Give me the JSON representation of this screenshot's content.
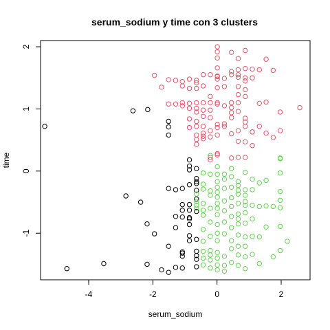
{
  "chart_data": {
    "type": "scatter",
    "title": "serum_sodium  y  time con  3  clusters",
    "xlabel": "serum_sodium",
    "ylabel": "time",
    "xlim": [
      -5.5,
      2.9
    ],
    "ylim": [
      -1.75,
      2.1
    ],
    "xticks": [
      -4,
      -2,
      0,
      2
    ],
    "yticks": [
      -1,
      0,
      1,
      2
    ],
    "grid": false,
    "legend": "none",
    "series": [
      {
        "color": "#000000",
        "points": [
          [
            -5.37,
            0.72
          ],
          [
            -4.68,
            -1.57
          ],
          [
            -3.53,
            -1.49
          ],
          [
            -2.84,
            -0.4
          ],
          [
            -2.62,
            0.97
          ],
          [
            -2.38,
            -0.5
          ],
          [
            -2.16,
            0.99
          ],
          [
            -2.18,
            -0.85
          ],
          [
            -2.18,
            -1.5
          ],
          [
            -1.95,
            -1.01
          ],
          [
            -1.73,
            -1.59
          ],
          [
            -1.51,
            -1.63
          ],
          [
            -1.51,
            0.58
          ],
          [
            -1.51,
            0.71
          ],
          [
            -1.51,
            0.8
          ],
          [
            -1.51,
            -0.28
          ],
          [
            -1.51,
            -1.21
          ],
          [
            -1.29,
            -1.55
          ],
          [
            -1.29,
            -0.91
          ],
          [
            -1.29,
            -0.73
          ],
          [
            -1.29,
            -0.3
          ],
          [
            -1.08,
            -1.56
          ],
          [
            -1.08,
            -0.54
          ],
          [
            -1.08,
            -0.63
          ],
          [
            -1.08,
            -0.74
          ],
          [
            -1.08,
            -0.28
          ],
          [
            -1.08,
            -1.32
          ],
          [
            -1.08,
            -1.37
          ],
          [
            -1.08,
            -1.3
          ],
          [
            -0.86,
            -0.54
          ],
          [
            -0.86,
            -0.63
          ],
          [
            -0.86,
            -0.75
          ],
          [
            -0.86,
            -0.77
          ],
          [
            -0.86,
            -0.86
          ],
          [
            -0.86,
            -1.04
          ],
          [
            -0.86,
            -1.12
          ],
          [
            -0.86,
            -0.22
          ],
          [
            -0.86,
            0.02
          ],
          [
            -0.86,
            0.08
          ],
          [
            -0.86,
            0.18
          ],
          [
            -0.64,
            -1.29
          ],
          [
            -0.64,
            -1.36
          ],
          [
            -0.64,
            -1.42
          ],
          [
            -0.64,
            -1.1
          ],
          [
            -0.64,
            -0.45
          ],
          [
            -0.64,
            -0.31
          ],
          [
            -0.64,
            -0.2
          ],
          [
            -0.64,
            -0.17
          ],
          [
            -0.64,
            -0.12
          ],
          [
            -0.64,
            0.04
          ],
          [
            -0.64,
            -1.54
          ],
          [
            -0.64,
            -0.65
          ]
        ]
      },
      {
        "color": "#DF536B",
        "points": [
          [
            -1.95,
            1.54
          ],
          [
            -1.73,
            1.35
          ],
          [
            -1.51,
            1.47
          ],
          [
            -1.51,
            1.08
          ],
          [
            -1.29,
            1.08
          ],
          [
            -1.29,
            1.46
          ],
          [
            -1.08,
            1.44
          ],
          [
            -1.08,
            1.37
          ],
          [
            -1.08,
            1.05
          ],
          [
            -1.08,
            1.1
          ],
          [
            -0.86,
            1.09
          ],
          [
            -0.86,
            1.01
          ],
          [
            -0.86,
            0.84
          ],
          [
            -0.86,
            0.7
          ],
          [
            -0.86,
            1.33
          ],
          [
            -0.86,
            1.48
          ],
          [
            -0.64,
            1.46
          ],
          [
            -0.64,
            1.33
          ],
          [
            -0.64,
            1.1
          ],
          [
            -0.64,
            1.01
          ],
          [
            -0.64,
            0.95
          ],
          [
            -0.64,
            0.8
          ],
          [
            -0.64,
            0.72
          ],
          [
            -0.64,
            0.58
          ],
          [
            -0.64,
            0.51
          ],
          [
            -0.64,
            0.43
          ],
          [
            -0.64,
            1.42
          ],
          [
            -0.43,
            1.37
          ],
          [
            -0.43,
            1.1
          ],
          [
            -0.43,
            0.98
          ],
          [
            -0.43,
            0.88
          ],
          [
            -0.43,
            0.72
          ],
          [
            -0.43,
            0.61
          ],
          [
            -0.43,
            0.56
          ],
          [
            -0.43,
            0.52
          ],
          [
            -0.43,
            1.55
          ],
          [
            -0.21,
            1.1
          ],
          [
            -0.21,
            0.98
          ],
          [
            -0.21,
            0.86
          ],
          [
            -0.21,
            0.65
          ],
          [
            -0.21,
            0.55
          ],
          [
            -0.21,
            0.22
          ],
          [
            -0.21,
            0.18
          ],
          [
            -0.21,
            1.55
          ],
          [
            -0.21,
            1.2
          ],
          [
            0.01,
            2.0
          ],
          [
            0.01,
            1.92
          ],
          [
            0.01,
            1.82
          ],
          [
            0.01,
            1.66
          ],
          [
            0.01,
            1.52
          ],
          [
            0.01,
            1.48
          ],
          [
            0.01,
            1.34
          ],
          [
            0.01,
            1.1
          ],
          [
            0.01,
            1.08
          ],
          [
            0.01,
            0.75
          ],
          [
            0.01,
            0.7
          ],
          [
            0.01,
            0.58
          ],
          [
            0.01,
            0.28
          ],
          [
            0.01,
            0.26
          ],
          [
            0.01,
            1.53
          ],
          [
            0.23,
            1.05
          ],
          [
            0.23,
            0.76
          ],
          [
            0.23,
            0.72
          ],
          [
            0.23,
            1.49
          ],
          [
            0.23,
            1.36
          ],
          [
            0.45,
            1.91
          ],
          [
            0.45,
            1.55
          ],
          [
            0.45,
            1.1
          ],
          [
            0.45,
            1.02
          ],
          [
            0.45,
            0.94
          ],
          [
            0.45,
            0.86
          ],
          [
            0.45,
            0.6
          ],
          [
            0.45,
            0.21
          ],
          [
            0.45,
            1.6
          ],
          [
            0.66,
            1.81
          ],
          [
            0.66,
            1.63
          ],
          [
            0.66,
            1.55
          ],
          [
            0.66,
            1.36
          ],
          [
            0.66,
            1.23
          ],
          [
            0.66,
            1.1
          ],
          [
            0.66,
            0.96
          ],
          [
            0.66,
            0.65
          ],
          [
            0.66,
            0.48
          ],
          [
            0.66,
            0.22
          ],
          [
            0.66,
            1.51
          ],
          [
            0.88,
            1.94
          ],
          [
            0.88,
            1.65
          ],
          [
            0.88,
            1.5
          ],
          [
            0.88,
            1.45
          ],
          [
            0.88,
            1.31
          ],
          [
            0.88,
            1.2
          ],
          [
            0.88,
            0.85
          ],
          [
            0.88,
            0.79
          ],
          [
            0.88,
            0.72
          ],
          [
            0.88,
            0.47
          ],
          [
            0.88,
            0.22
          ],
          [
            1.1,
            1.64
          ],
          [
            1.1,
            1.5
          ],
          [
            1.1,
            0.63
          ],
          [
            1.1,
            0.41
          ],
          [
            1.32,
            1.63
          ],
          [
            1.32,
            1.09
          ],
          [
            1.32,
            0.72
          ],
          [
            1.53,
            1.8
          ],
          [
            1.53,
            1.11
          ],
          [
            1.53,
            0.61
          ],
          [
            1.75,
            1.62
          ],
          [
            1.75,
            0.54
          ],
          [
            1.97,
            0.95
          ],
          [
            1.97,
            0.65
          ],
          [
            2.58,
            1.02
          ]
        ]
      },
      {
        "color": "#61D04F",
        "points": [
          [
            -0.64,
            -0.37
          ],
          [
            -0.64,
            -0.49
          ],
          [
            -0.64,
            -0.55
          ],
          [
            -0.64,
            -0.6
          ],
          [
            -0.43,
            -0.03
          ],
          [
            -0.43,
            -0.29
          ],
          [
            -0.43,
            -0.52
          ],
          [
            -0.43,
            -0.71
          ],
          [
            -0.43,
            -0.94
          ],
          [
            -0.43,
            -1.13
          ],
          [
            -0.43,
            -1.29
          ],
          [
            -0.43,
            -1.4
          ],
          [
            -0.43,
            -1.51
          ],
          [
            -0.43,
            -0.21
          ],
          [
            -0.43,
            -0.63
          ],
          [
            -0.21,
            0.25
          ],
          [
            -0.21,
            -0.05
          ],
          [
            -0.21,
            -0.32
          ],
          [
            -0.21,
            -0.39
          ],
          [
            -0.21,
            -0.6
          ],
          [
            -0.21,
            -0.82
          ],
          [
            -0.21,
            -1.05
          ],
          [
            -0.21,
            -1.28
          ],
          [
            -0.21,
            -1.35
          ],
          [
            -0.21,
            -1.43
          ],
          [
            -0.21,
            -1.56
          ],
          [
            0.01,
            -0.17
          ],
          [
            0.01,
            -0.26
          ],
          [
            0.01,
            -0.34
          ],
          [
            0.01,
            -0.42
          ],
          [
            0.01,
            -0.52
          ],
          [
            0.01,
            -0.6
          ],
          [
            0.01,
            -0.7
          ],
          [
            0.01,
            -0.86
          ],
          [
            0.01,
            -1.0
          ],
          [
            0.01,
            -1.12
          ],
          [
            0.01,
            -1.31
          ],
          [
            0.01,
            -1.4
          ],
          [
            0.01,
            -1.51
          ],
          [
            0.01,
            -1.59
          ],
          [
            0.01,
            0.07
          ],
          [
            0.01,
            -0.05
          ],
          [
            0.23,
            -0.05
          ],
          [
            0.23,
            -0.28
          ],
          [
            0.23,
            -0.48
          ],
          [
            0.23,
            -0.64
          ],
          [
            0.23,
            -0.82
          ],
          [
            0.23,
            -1.01
          ],
          [
            0.23,
            -1.37
          ],
          [
            0.23,
            -1.52
          ],
          [
            0.23,
            -1.61
          ],
          [
            0.23,
            -0.13
          ],
          [
            0.45,
            -0.09
          ],
          [
            0.45,
            -0.26
          ],
          [
            0.45,
            -0.43
          ],
          [
            0.45,
            -0.57
          ],
          [
            0.45,
            -0.73
          ],
          [
            0.45,
            -0.91
          ],
          [
            0.45,
            -1.12
          ],
          [
            0.45,
            -1.25
          ],
          [
            0.45,
            -1.47
          ],
          [
            0.45,
            0.04
          ],
          [
            0.66,
            -0.17
          ],
          [
            0.66,
            -0.23
          ],
          [
            0.66,
            -0.37
          ],
          [
            0.66,
            -0.52
          ],
          [
            0.66,
            -0.69
          ],
          [
            0.66,
            -0.85
          ],
          [
            0.66,
            -1.03
          ],
          [
            0.66,
            -1.21
          ],
          [
            0.66,
            -1.35
          ],
          [
            0.66,
            -1.52
          ],
          [
            0.66,
            -0.31
          ],
          [
            0.66,
            -0.77
          ],
          [
            0.88,
            -0.02
          ],
          [
            0.88,
            -0.3
          ],
          [
            0.88,
            -0.49
          ],
          [
            0.88,
            -0.67
          ],
          [
            0.88,
            -0.84
          ],
          [
            0.88,
            -1.06
          ],
          [
            0.88,
            -1.21
          ],
          [
            0.88,
            -1.38
          ],
          [
            0.88,
            -1.57
          ],
          [
            0.88,
            -0.39
          ],
          [
            0.88,
            -0.55
          ],
          [
            1.1,
            -0.13
          ],
          [
            1.1,
            -0.3
          ],
          [
            1.1,
            -0.55
          ],
          [
            1.1,
            -0.77
          ],
          [
            1.1,
            -1.05
          ],
          [
            1.1,
            -1.34
          ],
          [
            1.32,
            -0.57
          ],
          [
            1.32,
            -1.06
          ],
          [
            1.32,
            -1.49
          ],
          [
            1.32,
            -0.19
          ],
          [
            1.53,
            -0.56
          ],
          [
            1.53,
            -0.9
          ],
          [
            1.75,
            -0.57
          ],
          [
            1.75,
            -1.38
          ],
          [
            1.97,
            0.21
          ],
          [
            1.97,
            -0.33
          ],
          [
            1.97,
            -0.59
          ],
          [
            1.97,
            -0.89
          ],
          [
            1.97,
            -1.28
          ],
          [
            1.97,
            -0.47
          ],
          [
            1.97,
            -0.03
          ],
          [
            2.19,
            -1.13
          ],
          [
            1.97,
            0.2
          ],
          [
            1.53,
            -0.15
          ]
        ]
      }
    ]
  }
}
